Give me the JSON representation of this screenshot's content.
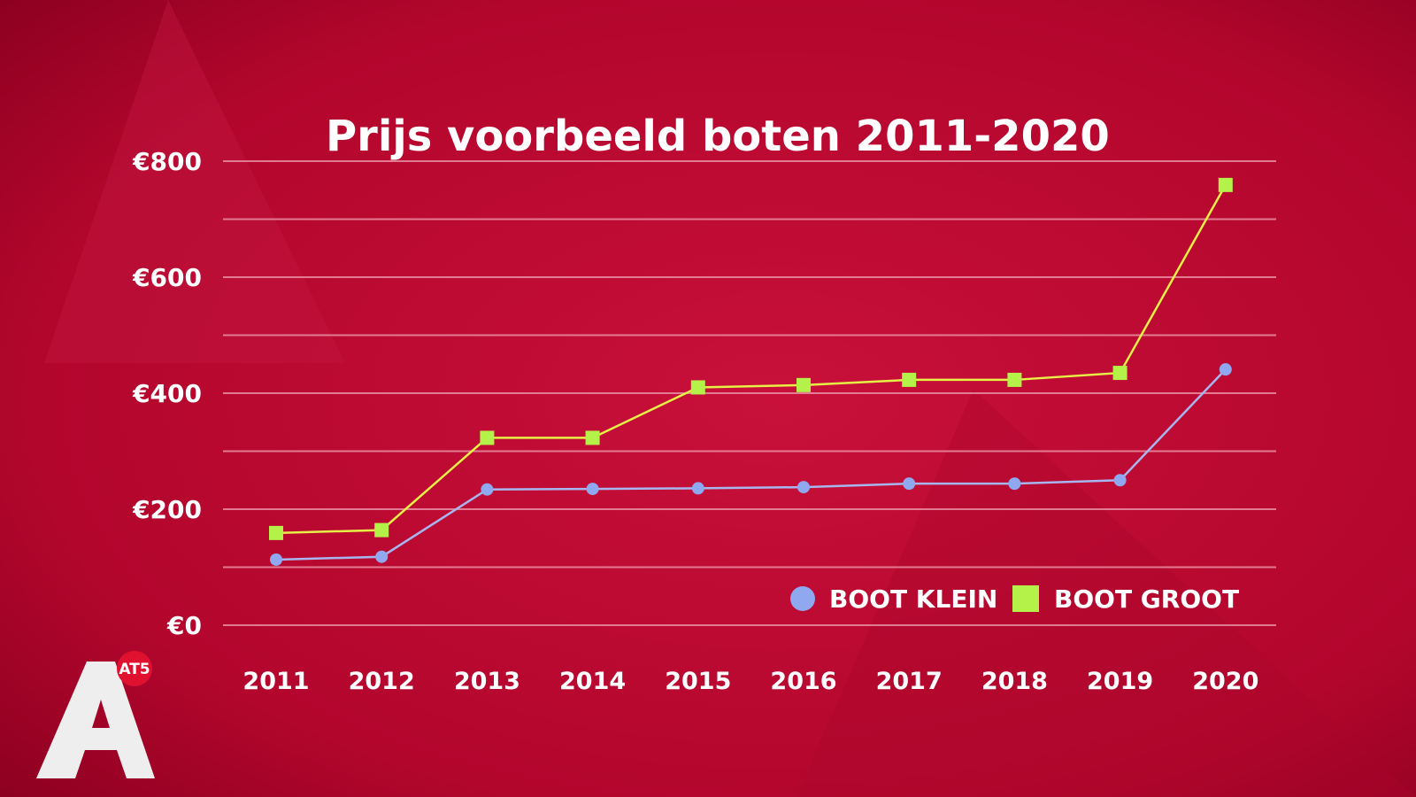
{
  "chart_data": {
    "type": "line",
    "title": "Prijs voorbeeld boten 2011-2020",
    "categories": [
      "2011",
      "2012",
      "2013",
      "2014",
      "2015",
      "2016",
      "2017",
      "2018",
      "2019",
      "2020"
    ],
    "ylim": [
      0,
      800
    ],
    "y_ticks": [
      {
        "value": 0,
        "label": "€0"
      },
      {
        "value": 200,
        "label": "€200"
      },
      {
        "value": 400,
        "label": "€400"
      },
      {
        "value": 600,
        "label": "€600"
      },
      {
        "value": 800,
        "label": "€800"
      }
    ],
    "gridlines": [
      0,
      100,
      200,
      300,
      400,
      500,
      600,
      700,
      800
    ],
    "grid": true,
    "legend_position": "bottom-right",
    "series": [
      {
        "name": "BOOT KLEIN",
        "marker": "circle",
        "color": "#8fa8f0",
        "line_color": "#a7b6ee",
        "values": [
          113,
          118,
          234,
          235,
          236,
          238,
          244,
          244,
          250,
          441
        ]
      },
      {
        "name": "BOOT GROOT",
        "marker": "square",
        "color": "#b4f24a",
        "line_color": "#e6f046",
        "values": [
          159,
          164,
          323,
          323,
          410,
          414,
          423,
          423,
          435,
          759
        ]
      }
    ]
  },
  "branding": {
    "logo_letter": "A",
    "badge": "AT5"
  },
  "colors": {
    "background": "#b5072f",
    "background_dark": "#8e0020",
    "grid": "#e98fa4",
    "text": "#ffffff",
    "logo": "#eeeeee",
    "badge": "#e0102f"
  }
}
